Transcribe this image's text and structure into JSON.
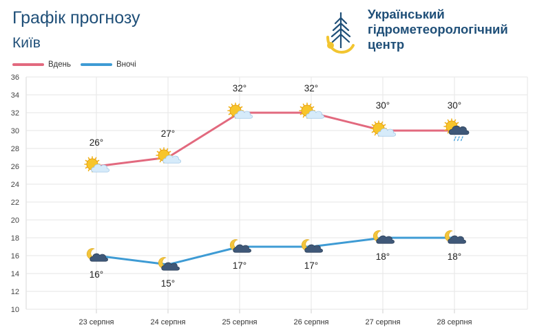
{
  "header": {
    "title": "Графік прогнозу",
    "city": "Київ"
  },
  "org": {
    "line1": "Український",
    "line2": "гідрометеорологічний",
    "line3": "центр"
  },
  "colors": {
    "day": "#e2697e",
    "night": "#3e9bd4",
    "title": "#1f4f78",
    "grid": "#e6e6e6"
  },
  "chart_data": {
    "type": "line",
    "categories": [
      "23 серпня",
      "24 серпня",
      "25 серпня",
      "26 серпня",
      "27 серпня",
      "28 серпня"
    ],
    "series": [
      {
        "name": "Вдень",
        "values": [
          26,
          27,
          32,
          32,
          30,
          30
        ],
        "labels": [
          "26°",
          "27°",
          "32°",
          "32°",
          "30°",
          "30°"
        ],
        "icons": [
          "sun-cloud-icon",
          "sun-cloud-icon",
          "sun-cloud-icon",
          "sun-cloud-icon",
          "sun-cloud-icon",
          "sun-rain-cloud-icon"
        ]
      },
      {
        "name": "Вночі",
        "values": [
          16,
          15,
          17,
          17,
          18,
          18
        ],
        "labels": [
          "16°",
          "15°",
          "17°",
          "17°",
          "18°",
          "18°"
        ],
        "icons": [
          "moon-cloud-icon",
          "moon-cloud-icon",
          "moon-cloud-icon",
          "moon-cloud-icon",
          "moon-cloud-icon",
          "moon-cloud-icon"
        ]
      }
    ],
    "yticks": [
      "36",
      "34",
      "32",
      "30",
      "28",
      "26",
      "24",
      "22",
      "20",
      "18",
      "16",
      "14",
      "12",
      "10"
    ],
    "ylim": [
      10,
      36
    ],
    "grid": true,
    "legend": "top-left"
  }
}
